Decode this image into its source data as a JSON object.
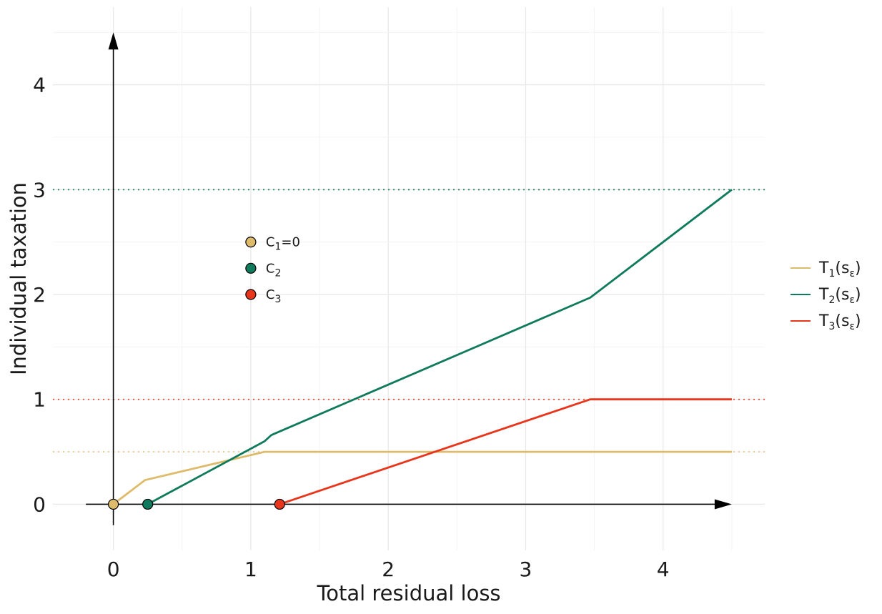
{
  "chart_data": {
    "type": "line",
    "title": "",
    "xlabel": "Total residual loss",
    "ylabel": "Individual taxation",
    "xlim": [
      -0.44,
      4.74
    ],
    "ylim": [
      -0.44,
      4.74
    ],
    "x_ticks": [
      0,
      1,
      2,
      3,
      4
    ],
    "y_ticks": [
      0,
      1,
      2,
      3,
      4
    ],
    "grid": true,
    "legend_position": "right",
    "series": [
      {
        "name": "T1(sε)",
        "legend": {
          "base": "T",
          "sub": "1",
          "arg_base": "s",
          "arg_sub": "ε"
        },
        "color": "#DDBB6B",
        "points": [
          [
            0,
            0
          ],
          [
            0.23,
            0.23
          ],
          [
            1.1,
            0.5
          ],
          [
            4.5,
            0.5
          ]
        ],
        "cap": 0.5
      },
      {
        "name": "T2(sε)",
        "legend": {
          "base": "T",
          "sub": "2",
          "arg_base": "s",
          "arg_sub": "ε"
        },
        "color": "#0F7A5C",
        "points": [
          [
            0.25,
            0
          ],
          [
            1.1,
            0.6
          ],
          [
            1.15,
            0.66
          ],
          [
            3.47,
            1.97
          ],
          [
            4.5,
            3.0
          ]
        ],
        "cap": 3.0
      },
      {
        "name": "T3(sε)",
        "legend": {
          "base": "T",
          "sub": "3",
          "arg_base": "s",
          "arg_sub": "ε"
        },
        "color": "#E8361C",
        "points": [
          [
            1.21,
            0
          ],
          [
            3.47,
            1.0
          ],
          [
            4.5,
            1.0
          ]
        ],
        "cap": 1.0
      }
    ],
    "points": [
      {
        "x": 0,
        "y": 0,
        "series": 0
      },
      {
        "x": 0.25,
        "y": 0,
        "series": 1
      },
      {
        "x": 1.21,
        "y": 0,
        "series": 2
      }
    ],
    "point_legend": [
      {
        "label": {
          "base": "C",
          "sub": "1",
          "rest": "=0"
        },
        "color": "#DDBB6B",
        "x": 1.0,
        "y": 2.5
      },
      {
        "label": {
          "base": "C",
          "sub": "2",
          "rest": ""
        },
        "color": "#0F7A5C",
        "x": 1.0,
        "y": 2.25
      },
      {
        "label": {
          "base": "C",
          "sub": "3",
          "rest": ""
        },
        "color": "#E8361C",
        "x": 1.0,
        "y": 2.0
      }
    ],
    "arrows": {
      "x_axis": [
        -0.2,
        4.5
      ],
      "y_axis": [
        -0.2,
        4.5
      ]
    }
  }
}
